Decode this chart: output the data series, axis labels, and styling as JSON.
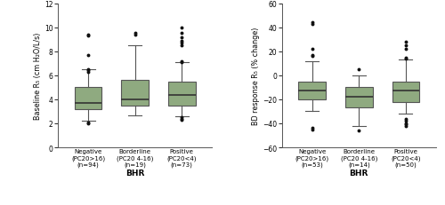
{
  "left": {
    "ylabel": "Baseline R₅ (cm H₂O/L/s)",
    "xlabel": "BHR",
    "ylim": [
      0,
      12
    ],
    "yticks": [
      0,
      2,
      4,
      6,
      8,
      10,
      12
    ],
    "categories": [
      "Negative\n(PC20>16)\n(n=94)",
      "Borderline\n(PC20 4-16)\n(n=19)",
      "Positive\n(PC20<4)\n(n=73)"
    ],
    "boxes": [
      {
        "med": 3.7,
        "q1": 3.2,
        "q3": 5.0,
        "whislo": 2.2,
        "whishi": 6.5,
        "fliers": [
          9.4,
          9.3,
          7.7,
          6.5,
          6.4,
          6.3,
          2.1,
          2.0
        ]
      },
      {
        "med": 4.0,
        "q1": 3.5,
        "q3": 5.6,
        "whislo": 2.7,
        "whishi": 8.5,
        "fliers": [
          9.5,
          9.4
        ]
      },
      {
        "med": 4.35,
        "q1": 3.5,
        "q3": 5.5,
        "whislo": 2.6,
        "whishi": 7.1,
        "fliers": [
          10.0,
          9.5,
          9.2,
          8.9,
          8.7,
          8.5,
          7.2,
          7.1,
          2.5,
          2.4,
          2.3
        ]
      }
    ],
    "box_color": "#8faa80",
    "box_edge_color": "#555555",
    "median_color": "#333333",
    "flier_color": "#111111"
  },
  "right": {
    "ylabel": "BD response R₅ (% change)",
    "xlabel": "BHR",
    "ylim": [
      -60,
      60
    ],
    "yticks": [
      -60,
      -40,
      -20,
      0,
      20,
      40,
      60
    ],
    "categories": [
      "Negative\n(PC20>16)\n(n=53)",
      "Borderline\n(PC20 4-16)\n(n=14)",
      "Positive\n(PC20<4)\n(n=50)"
    ],
    "boxes": [
      {
        "med": -13,
        "q1": -20,
        "q3": -5,
        "whislo": -30,
        "whishi": 12,
        "fliers": [
          44,
          43,
          22,
          17,
          16,
          -44,
          -45
        ]
      },
      {
        "med": -18,
        "q1": -27,
        "q3": -10,
        "whislo": -42,
        "whishi": 0,
        "fliers": [
          5,
          -46
        ]
      },
      {
        "med": -13,
        "q1": -22,
        "q3": -5,
        "whislo": -32,
        "whishi": 13,
        "fliers": [
          28,
          25,
          22,
          15,
          14,
          -36,
          -38,
          -40,
          -41,
          -42
        ]
      }
    ],
    "box_color": "#8faa80",
    "box_edge_color": "#555555",
    "median_color": "#333333",
    "flier_color": "#111111"
  },
  "background_color": "#ffffff",
  "plot_bg_color": "#ffffff",
  "figsize": [
    5.0,
    2.32
  ],
  "dpi": 100
}
